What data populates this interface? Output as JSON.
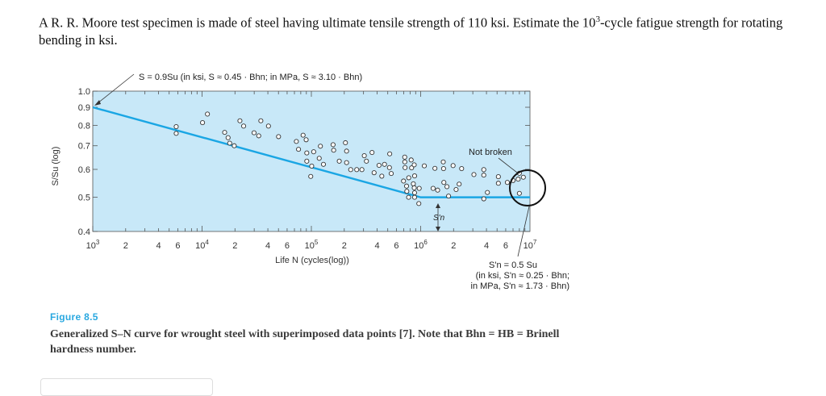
{
  "question": {
    "text_before": "A R. R. Moore test specimen is made of steel having ultimate tensile strength of 110 ksi. Estimate the 10",
    "superscript": "3",
    "text_after": "-cycle fatigue strength for rotating bending in ksi."
  },
  "figure": {
    "number": "Figure 8.5",
    "caption": "Generalized S–N curve for wrought steel with superimposed data points [7]. Note that Bhn = HB = Brinell hardness number."
  },
  "chart_data": {
    "type": "scatter",
    "xlabel": "Life N (cycles(log))",
    "ylabel": "S/Su (log)",
    "x_scale": "log",
    "y_scale": "log",
    "xlim": [
      1000,
      10000000
    ],
    "ylim": [
      0.4,
      1.0
    ],
    "x_tick_labels": [
      {
        "value": 1000,
        "base": "10",
        "exp": "3"
      },
      {
        "value": 2000,
        "base": "2",
        "exp": ""
      },
      {
        "value": 4000,
        "base": "4",
        "exp": ""
      },
      {
        "value": 6000,
        "base": "6",
        "exp": ""
      },
      {
        "value": 10000,
        "base": "10",
        "exp": "4"
      },
      {
        "value": 20000,
        "base": "2",
        "exp": ""
      },
      {
        "value": 40000,
        "base": "4",
        "exp": ""
      },
      {
        "value": 60000,
        "base": "6",
        "exp": ""
      },
      {
        "value": 100000,
        "base": "10",
        "exp": "5"
      },
      {
        "value": 200000,
        "base": "2",
        "exp": ""
      },
      {
        "value": 400000,
        "base": "4",
        "exp": ""
      },
      {
        "value": 600000,
        "base": "6",
        "exp": ""
      },
      {
        "value": 1000000,
        "base": "10",
        "exp": "6"
      },
      {
        "value": 2000000,
        "base": "2",
        "exp": ""
      },
      {
        "value": 4000000,
        "base": "4",
        "exp": ""
      },
      {
        "value": 6000000,
        "base": "6",
        "exp": ""
      },
      {
        "value": 10000000,
        "base": "10",
        "exp": "7"
      }
    ],
    "y_ticks": [
      {
        "value": 1.0,
        "label": "1.0"
      },
      {
        "value": 0.9,
        "label": "0.9"
      },
      {
        "value": 0.8,
        "label": "0.8"
      },
      {
        "value": 0.7,
        "label": "0.7"
      },
      {
        "value": 0.6,
        "label": "0.6"
      },
      {
        "value": 0.5,
        "label": "0.5"
      },
      {
        "value": 0.4,
        "label": "0.4"
      }
    ],
    "grid": false,
    "background_color": "#c8e8f8",
    "line_color": "#1aa6e4",
    "curve": [
      [
        1000,
        0.9
      ],
      [
        1000000,
        0.5
      ],
      [
        10000000,
        0.5
      ]
    ],
    "points": [
      [
        5800,
        0.793
      ],
      [
        5800,
        0.759
      ],
      [
        10100,
        0.814
      ],
      [
        11200,
        0.861
      ],
      [
        16100,
        0.764
      ],
      [
        17300,
        0.738
      ],
      [
        17900,
        0.712
      ],
      [
        19700,
        0.7
      ],
      [
        22200,
        0.824
      ],
      [
        24000,
        0.796
      ],
      [
        29900,
        0.762
      ],
      [
        33000,
        0.747
      ],
      [
        34500,
        0.824
      ],
      [
        40500,
        0.796
      ],
      [
        50100,
        0.743
      ],
      [
        72900,
        0.72
      ],
      [
        76300,
        0.684
      ],
      [
        84000,
        0.75
      ],
      [
        89600,
        0.728
      ],
      [
        90800,
        0.668
      ],
      [
        90800,
        0.633
      ],
      [
        100700,
        0.613
      ],
      [
        98700,
        0.573
      ],
      [
        105000,
        0.673
      ],
      [
        118000,
        0.645
      ],
      [
        121000,
        0.698
      ],
      [
        129000,
        0.62
      ],
      [
        158000,
        0.705
      ],
      [
        160000,
        0.68
      ],
      [
        180000,
        0.633
      ],
      [
        205000,
        0.714
      ],
      [
        210000,
        0.676
      ],
      [
        210000,
        0.627
      ],
      [
        229000,
        0.599
      ],
      [
        260000,
        0.599
      ],
      [
        290000,
        0.599
      ],
      [
        305000,
        0.656
      ],
      [
        319000,
        0.633
      ],
      [
        359000,
        0.67
      ],
      [
        375000,
        0.587
      ],
      [
        416000,
        0.616
      ],
      [
        441000,
        0.574
      ],
      [
        467000,
        0.62
      ],
      [
        518000,
        0.607
      ],
      [
        521000,
        0.664
      ],
      [
        538000,
        0.584
      ],
      [
        715000,
        0.65
      ],
      [
        716000,
        0.63
      ],
      [
        720000,
        0.607
      ],
      [
        697000,
        0.556
      ],
      [
        743000,
        0.538
      ],
      [
        747000,
        0.52
      ],
      [
        778000,
        0.568
      ],
      [
        819000,
        0.638
      ],
      [
        826000,
        0.606
      ],
      [
        776000,
        0.5
      ],
      [
        857000,
        0.546
      ],
      [
        873000,
        0.618
      ],
      [
        880000,
        0.575
      ],
      [
        873000,
        0.532
      ],
      [
        880000,
        0.515
      ],
      [
        880000,
        0.5
      ],
      [
        962000,
        0.48
      ],
      [
        970000,
        0.53
      ],
      [
        1080000,
        0.614
      ],
      [
        1300000,
        0.53
      ],
      [
        1350000,
        0.604
      ],
      [
        1430000,
        0.524
      ],
      [
        1610000,
        0.63
      ],
      [
        1620000,
        0.603
      ],
      [
        1630000,
        0.551
      ],
      [
        1740000,
        0.536
      ],
      [
        1800000,
        0.504
      ],
      [
        1980000,
        0.615
      ],
      [
        2110000,
        0.526
      ],
      [
        2250000,
        0.545
      ],
      [
        2370000,
        0.603
      ],
      [
        3070000,
        0.58
      ],
      [
        3780000,
        0.599
      ],
      [
        3780000,
        0.578
      ],
      [
        3780000,
        0.495
      ],
      [
        4080000,
        0.516
      ],
      [
        5140000,
        0.572
      ],
      [
        5140000,
        0.548
      ],
      [
        6210000,
        0.551
      ],
      [
        7000000,
        0.558
      ],
      [
        7800000,
        0.563
      ],
      [
        8000000,
        0.585
      ],
      [
        8000000,
        0.513
      ],
      [
        8700000,
        0.57
      ]
    ],
    "annotations": {
      "top": "S = 0.9Su (in ksi, S ≈ 0.45 · Bhn; in MPa, S ≈ 3.10 · Bhn)",
      "not_broken": "Not broken",
      "sn_label": "S'n",
      "sn_line1": "S'n = 0.5 Su",
      "sn_line2": "(in ksi, S'n ≈ 0.25 · Bhn;",
      "sn_line3": "in MPa, S'n ≈ 1.73 · Bhn)"
    }
  }
}
